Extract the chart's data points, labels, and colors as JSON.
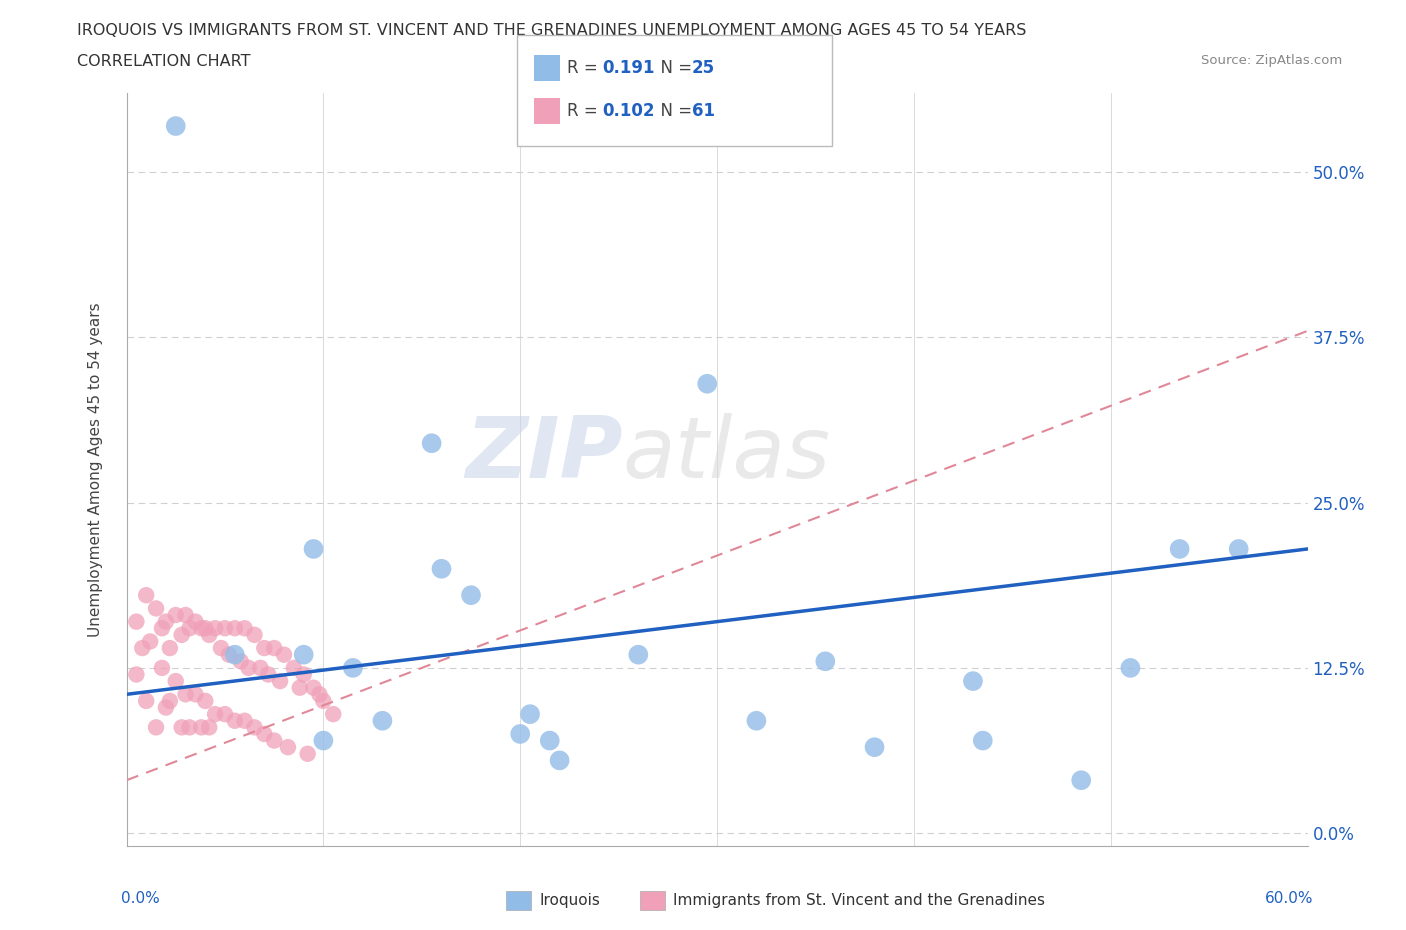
{
  "title_line1": "IROQUOIS VS IMMIGRANTS FROM ST. VINCENT AND THE GRENADINES UNEMPLOYMENT AMONG AGES 45 TO 54 YEARS",
  "title_line2": "CORRELATION CHART",
  "source": "Source: ZipAtlas.com",
  "ylabel": "Unemployment Among Ages 45 to 54 years",
  "yticks": [
    "0.0%",
    "12.5%",
    "25.0%",
    "37.5%",
    "50.0%"
  ],
  "ytick_vals": [
    0.0,
    0.125,
    0.25,
    0.375,
    0.5
  ],
  "xrange": [
    0.0,
    0.6
  ],
  "yrange": [
    -0.01,
    0.56
  ],
  "iroquois_color": "#92bce8",
  "immigrants_color": "#f0a0b8",
  "iroquois_line_color": "#2060c0",
  "immigrants_line_color": "#e08898",
  "legend_R1": "0.191",
  "legend_N1": "25",
  "legend_R2": "0.102",
  "legend_N2": "61",
  "watermark_zip": "ZIP",
  "watermark_atlas": "atlas",
  "iroquois_x": [
    0.025,
    0.055,
    0.09,
    0.095,
    0.1,
    0.115,
    0.13,
    0.155,
    0.16,
    0.175,
    0.2,
    0.205,
    0.215,
    0.22,
    0.26,
    0.295,
    0.32,
    0.355,
    0.38,
    0.43,
    0.435,
    0.485,
    0.51,
    0.535,
    0.565
  ],
  "iroquois_y": [
    0.535,
    0.135,
    0.135,
    0.215,
    0.07,
    0.125,
    0.085,
    0.295,
    0.2,
    0.18,
    0.075,
    0.09,
    0.07,
    0.055,
    0.135,
    0.34,
    0.085,
    0.13,
    0.065,
    0.115,
    0.07,
    0.04,
    0.125,
    0.215,
    0.215
  ],
  "immigrants_x": [
    0.005,
    0.005,
    0.008,
    0.01,
    0.01,
    0.012,
    0.015,
    0.015,
    0.018,
    0.018,
    0.02,
    0.02,
    0.022,
    0.022,
    0.025,
    0.025,
    0.028,
    0.028,
    0.03,
    0.03,
    0.032,
    0.032,
    0.035,
    0.035,
    0.038,
    0.038,
    0.04,
    0.04,
    0.042,
    0.042,
    0.045,
    0.045,
    0.048,
    0.05,
    0.05,
    0.052,
    0.055,
    0.055,
    0.058,
    0.06,
    0.06,
    0.062,
    0.065,
    0.065,
    0.068,
    0.07,
    0.07,
    0.072,
    0.075,
    0.075,
    0.078,
    0.08,
    0.082,
    0.085,
    0.088,
    0.09,
    0.092,
    0.095,
    0.098,
    0.1,
    0.105
  ],
  "immigrants_y": [
    0.16,
    0.12,
    0.14,
    0.18,
    0.1,
    0.145,
    0.17,
    0.08,
    0.155,
    0.125,
    0.16,
    0.095,
    0.14,
    0.1,
    0.165,
    0.115,
    0.15,
    0.08,
    0.165,
    0.105,
    0.155,
    0.08,
    0.16,
    0.105,
    0.155,
    0.08,
    0.155,
    0.1,
    0.15,
    0.08,
    0.155,
    0.09,
    0.14,
    0.155,
    0.09,
    0.135,
    0.155,
    0.085,
    0.13,
    0.155,
    0.085,
    0.125,
    0.15,
    0.08,
    0.125,
    0.14,
    0.075,
    0.12,
    0.14,
    0.07,
    0.115,
    0.135,
    0.065,
    0.125,
    0.11,
    0.12,
    0.06,
    0.11,
    0.105,
    0.1,
    0.09
  ]
}
